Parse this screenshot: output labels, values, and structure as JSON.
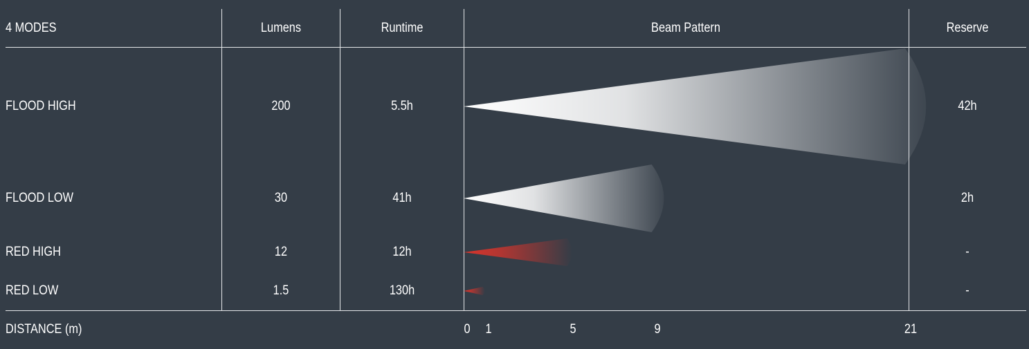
{
  "headers": {
    "modes": "4 MODES",
    "lumens": "Lumens",
    "runtime": "Runtime",
    "beam": "Beam Pattern",
    "reserve": "Reserve"
  },
  "chart_data": {
    "type": "bar",
    "x_label": "DISTANCE (m)",
    "x_ticks": [
      0,
      1,
      5,
      9,
      21
    ],
    "x_range": [
      0,
      21
    ],
    "colors": {
      "white_beam": "#ffffff",
      "red_beam": "#d9342b",
      "background": "#343d47"
    },
    "rows": [
      {
        "mode": "FLOOD HIGH",
        "lumens": "200",
        "runtime": "5.5h",
        "reserve": "42h",
        "distance": 21,
        "beam_color": "white"
      },
      {
        "mode": "FLOOD LOW",
        "lumens": "30",
        "runtime": "41h",
        "reserve": "2h",
        "distance": 9,
        "beam_color": "white"
      },
      {
        "mode": "RED HIGH",
        "lumens": "12",
        "runtime": "12h",
        "reserve": "-",
        "distance": 5,
        "beam_color": "red"
      },
      {
        "mode": "RED LOW",
        "lumens": "1.5",
        "runtime": "130h",
        "reserve": "-",
        "distance": 1,
        "beam_color": "red"
      }
    ]
  }
}
